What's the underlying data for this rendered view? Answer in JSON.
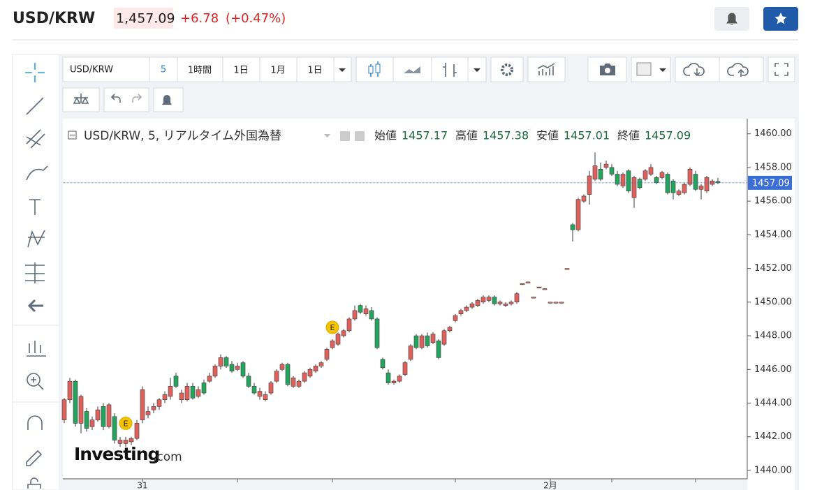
{
  "header": {
    "symbol": "USD/KRW",
    "price": "1,457.09",
    "change": "+6.78",
    "change_pct": "(+0.47%)"
  },
  "toolbar": {
    "symbol": "USD/KRW",
    "interval": "5",
    "buttons": [
      "1時間",
      "1日",
      "1月",
      "1日"
    ]
  },
  "chart_data": {
    "type": "candlestick",
    "title": "USD/KRW, 5, リアルタイム外国為替",
    "legend_labels": [
      "始値",
      "高値",
      "安値",
      "終値"
    ],
    "up_color": "#e0605c",
    "down_color": "#23a55d",
    "candles": [
      [
        1443.0,
        1444.3,
        1442.8,
        1444.2
      ],
      [
        1444.2,
        1445.5,
        1444.0,
        1445.3
      ],
      [
        1445.3,
        1445.4,
        1442.6,
        1442.8
      ],
      [
        1442.8,
        1444.5,
        1442.2,
        1444.4
      ],
      [
        1443.5,
        1443.7,
        1442.3,
        1442.5
      ],
      [
        1442.6,
        1443.2,
        1442.4,
        1443.0
      ],
      [
        1443.0,
        1443.8,
        1442.9,
        1443.6
      ],
      [
        1443.8,
        1444.0,
        1442.4,
        1442.6
      ],
      [
        1442.6,
        1444.0,
        1442.5,
        1443.9
      ],
      [
        1443.2,
        1443.4,
        1441.6,
        1441.8
      ],
      [
        1441.6,
        1442.0,
        1441.4,
        1441.8
      ],
      [
        1441.6,
        1442.0,
        1441.4,
        1441.8
      ],
      [
        1441.7,
        1442.0,
        1441.5,
        1441.9
      ],
      [
        1441.9,
        1443.0,
        1441.8,
        1442.8
      ],
      [
        1443.0,
        1445.0,
        1442.8,
        1444.8
      ],
      [
        1443.3,
        1443.8,
        1443.1,
        1443.5
      ],
      [
        1443.6,
        1444.0,
        1443.4,
        1443.8
      ],
      [
        1443.8,
        1444.3,
        1443.6,
        1444.2
      ],
      [
        1444.2,
        1444.7,
        1444.0,
        1444.5
      ],
      [
        1444.4,
        1445.5,
        1444.2,
        1445.0
      ],
      [
        1445.6,
        1445.8,
        1444.9,
        1445.0
      ],
      [
        1444.2,
        1444.8,
        1444.0,
        1444.6
      ],
      [
        1444.2,
        1445.2,
        1444.1,
        1445.0
      ],
      [
        1445.0,
        1445.2,
        1444.2,
        1444.3
      ],
      [
        1444.4,
        1445.0,
        1444.3,
        1444.8
      ],
      [
        1445.2,
        1445.4,
        1444.5,
        1444.6
      ],
      [
        1445.3,
        1445.8,
        1445.2,
        1445.6
      ],
      [
        1445.6,
        1446.3,
        1445.5,
        1446.2
      ],
      [
        1446.2,
        1446.9,
        1446.0,
        1446.7
      ],
      [
        1446.7,
        1446.8,
        1446.1,
        1446.2
      ],
      [
        1446.3,
        1446.5,
        1445.8,
        1445.9
      ],
      [
        1446.0,
        1446.4,
        1445.9,
        1446.2
      ],
      [
        1446.4,
        1446.5,
        1445.5,
        1445.6
      ],
      [
        1445.6,
        1445.8,
        1444.9,
        1445.0
      ],
      [
        1445.0,
        1445.2,
        1444.5,
        1444.6
      ],
      [
        1444.4,
        1444.9,
        1444.2,
        1444.7
      ],
      [
        1444.2,
        1444.7,
        1444.1,
        1444.5
      ],
      [
        1444.6,
        1445.3,
        1444.5,
        1445.2
      ],
      [
        1445.3,
        1446.0,
        1445.2,
        1445.9
      ],
      [
        1446.0,
        1446.4,
        1445.9,
        1446.3
      ],
      [
        1446.3,
        1446.4,
        1445.0,
        1445.1
      ],
      [
        1445.0,
        1445.6,
        1444.9,
        1445.5
      ],
      [
        1445.0,
        1445.4,
        1444.9,
        1445.3
      ],
      [
        1445.3,
        1445.9,
        1445.2,
        1445.8
      ],
      [
        1445.6,
        1446.1,
        1445.5,
        1446.0
      ],
      [
        1445.9,
        1446.3,
        1445.8,
        1446.2
      ],
      [
        1446.2,
        1446.5,
        1446.1,
        1446.4
      ],
      [
        1446.6,
        1447.3,
        1446.5,
        1447.2
      ],
      [
        1447.3,
        1447.8,
        1447.2,
        1447.7
      ],
      [
        1447.5,
        1448.2,
        1447.4,
        1448.1
      ],
      [
        1448.0,
        1448.4,
        1447.9,
        1448.3
      ],
      [
        1448.3,
        1449.1,
        1448.2,
        1449.0
      ],
      [
        1449.0,
        1449.8,
        1448.9,
        1449.5
      ],
      [
        1449.8,
        1449.9,
        1449.3,
        1449.4
      ],
      [
        1449.3,
        1449.8,
        1449.2,
        1449.6
      ],
      [
        1449.5,
        1449.7,
        1448.9,
        1449.0
      ],
      [
        1449.0,
        1449.1,
        1447.2,
        1447.3
      ],
      [
        1446.6,
        1446.7,
        1446.0,
        1446.1
      ],
      [
        1445.8,
        1446.0,
        1445.1,
        1445.2
      ],
      [
        1445.2,
        1445.4,
        1445.1,
        1445.3
      ],
      [
        1445.3,
        1445.7,
        1445.2,
        1445.6
      ],
      [
        1445.7,
        1446.5,
        1445.6,
        1446.4
      ],
      [
        1446.6,
        1447.5,
        1446.5,
        1447.4
      ],
      [
        1448.0,
        1448.1,
        1447.2,
        1447.3
      ],
      [
        1447.3,
        1448.1,
        1447.2,
        1448.0
      ],
      [
        1448.0,
        1448.2,
        1447.3,
        1447.4
      ],
      [
        1447.6,
        1448.2,
        1447.5,
        1448.1
      ],
      [
        1447.7,
        1447.8,
        1446.6,
        1446.7
      ],
      [
        1447.5,
        1448.4,
        1447.4,
        1448.3
      ],
      [
        1448.3,
        1448.6,
        1448.2,
        1448.5
      ],
      [
        1448.9,
        1449.3,
        1448.8,
        1449.2
      ],
      [
        1449.3,
        1449.6,
        1449.2,
        1449.5
      ],
      [
        1449.5,
        1449.8,
        1449.4,
        1449.7
      ],
      [
        1449.7,
        1450.0,
        1449.6,
        1449.9
      ],
      [
        1449.8,
        1450.2,
        1449.7,
        1450.1
      ],
      [
        1450.0,
        1450.4,
        1449.9,
        1450.3
      ],
      [
        1450.1,
        1450.4,
        1450.0,
        1450.3
      ],
      [
        1450.3,
        1450.4,
        1449.8,
        1449.9
      ],
      [
        1449.9,
        1450.1,
        1449.8,
        1450.0
      ],
      [
        1449.8,
        1450.0,
        1449.7,
        1449.9
      ],
      [
        1449.9,
        1450.1,
        1449.8,
        1450.0
      ],
      [
        1450.0,
        1450.6,
        1449.9,
        1450.5
      ],
      [
        1451.1,
        1451.1,
        1451.1,
        1451.1
      ],
      [
        1451.2,
        1451.2,
        1451.2,
        1451.2
      ],
      [
        1450.3,
        1450.3,
        1450.3,
        1450.3
      ],
      [
        1450.9,
        1450.9,
        1450.9,
        1450.9
      ],
      [
        1450.8,
        1450.8,
        1450.8,
        1450.8
      ],
      [
        1450.0,
        1450.0,
        1450.0,
        1450.0
      ],
      [
        1450.0,
        1450.0,
        1450.0,
        1450.0
      ],
      [
        1450.0,
        1450.0,
        1450.0,
        1450.0
      ],
      [
        1452.0,
        1452.0,
        1452.0,
        1452.0
      ],
      [
        1454.6,
        1454.7,
        1453.6,
        1454.3
      ],
      [
        1454.3,
        1456.2,
        1454.2,
        1456.1
      ],
      [
        1456.0,
        1456.4,
        1455.9,
        1456.3
      ],
      [
        1456.4,
        1457.8,
        1455.8,
        1457.5
      ],
      [
        1457.3,
        1458.9,
        1457.2,
        1458.1
      ],
      [
        1457.9,
        1458.3,
        1457.2,
        1457.3
      ],
      [
        1458.0,
        1458.4,
        1457.9,
        1458.2
      ],
      [
        1458.0,
        1458.2,
        1457.5,
        1457.6
      ],
      [
        1457.6,
        1457.8,
        1456.9,
        1457.0
      ],
      [
        1456.9,
        1457.7,
        1456.8,
        1457.6
      ],
      [
        1457.8,
        1457.9,
        1456.5,
        1456.6
      ],
      [
        1456.2,
        1457.5,
        1455.6,
        1457.4
      ],
      [
        1457.3,
        1457.4,
        1456.7,
        1456.8
      ],
      [
        1457.3,
        1457.9,
        1457.2,
        1457.8
      ],
      [
        1457.6,
        1458.2,
        1457.5,
        1458.0
      ],
      [
        1457.4,
        1457.5,
        1457.0,
        1457.1
      ],
      [
        1457.4,
        1457.8,
        1457.3,
        1457.7
      ],
      [
        1457.6,
        1457.7,
        1456.4,
        1456.5
      ],
      [
        1457.2,
        1457.3,
        1456.1,
        1456.5
      ],
      [
        1456.4,
        1456.7,
        1456.3,
        1456.6
      ],
      [
        1456.5,
        1457.1,
        1456.4,
        1457.0
      ],
      [
        1457.0,
        1458.0,
        1456.9,
        1457.9
      ],
      [
        1457.6,
        1457.8,
        1456.6,
        1456.7
      ],
      [
        1456.7,
        1457.0,
        1456.1,
        1456.9
      ],
      [
        1456.6,
        1457.5,
        1456.5,
        1457.4
      ],
      [
        1457.0,
        1457.3,
        1456.9,
        1457.2
      ],
      [
        1457.17,
        1457.38,
        1457.01,
        1457.09
      ]
    ],
    "ylim": [
      1439.5,
      1460.9
    ],
    "yticks": [
      {
        "value": 1440,
        "label": "1440.00"
      },
      {
        "value": 1442,
        "label": "1442.00"
      },
      {
        "value": 1444,
        "label": "1444.00"
      },
      {
        "value": 1446,
        "label": "1446.00"
      },
      {
        "value": 1448,
        "label": "1448.00"
      },
      {
        "value": 1450,
        "label": "1450.00"
      },
      {
        "value": 1452,
        "label": "1452.00"
      },
      {
        "value": 1454,
        "label": "1454.00"
      },
      {
        "value": 1456,
        "label": "1456.00"
      },
      {
        "value": 1458,
        "label": "1458.00"
      },
      {
        "value": 1460,
        "label": "1460.00"
      }
    ],
    "xticks": [
      {
        "value": 14,
        "label": "31"
      },
      {
        "value": 31,
        "label": null
      },
      {
        "value": 48,
        "label": null
      },
      {
        "value": 70,
        "label": null
      },
      {
        "value": 87,
        "label": "2月"
      },
      {
        "value": 98,
        "label": null
      },
      {
        "value": 113,
        "label": null
      }
    ],
    "events": [
      {
        "index": 11,
        "value": 1442.8,
        "label": "E"
      },
      {
        "index": 48,
        "value": 1448.5,
        "label": "E"
      }
    ],
    "last_price_color": "#3b6fd6",
    "watermark": "Investing",
    "watermark_suffix": ".com"
  }
}
